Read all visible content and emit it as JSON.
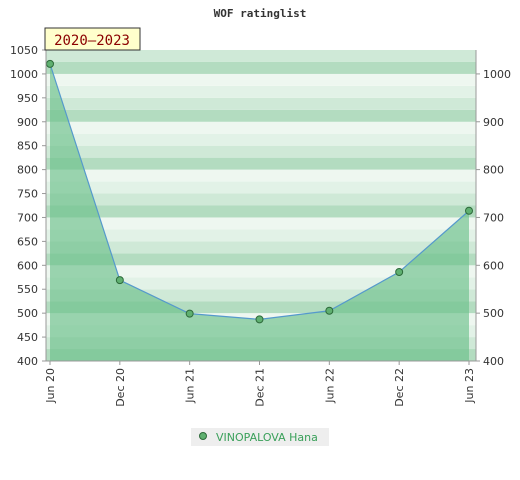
{
  "chart_data": {
    "type": "area",
    "title": "WOF ratinglist",
    "period_label": "2020–2023",
    "categories": [
      "Jun 20",
      "Dec 20",
      "Jun 21",
      "Dec 21",
      "Jun 22",
      "Dec 22",
      "Jun 23"
    ],
    "series": [
      {
        "name": "VINOPALOVA Hana",
        "values": [
          1021,
          569,
          499,
          487,
          505,
          586,
          714
        ]
      }
    ],
    "ylim": [
      400,
      1050
    ],
    "y_ticks_left": [
      400,
      450,
      500,
      550,
      600,
      650,
      700,
      750,
      800,
      850,
      900,
      950,
      1000,
      1050
    ],
    "y_ticks_right": [
      400,
      500,
      600,
      700,
      800,
      900,
      1000
    ],
    "grid": true,
    "legend_position": "bottom-center",
    "colors": {
      "line": "#5599cc",
      "fill": "#6cc08a",
      "marker": "#5fb070",
      "band_dark": "#b3dcc0",
      "band_light": "#eef7f0",
      "legend_text": "#3aa05a",
      "period_bg": "#ffffcc",
      "period_text": "#8b0000"
    }
  }
}
